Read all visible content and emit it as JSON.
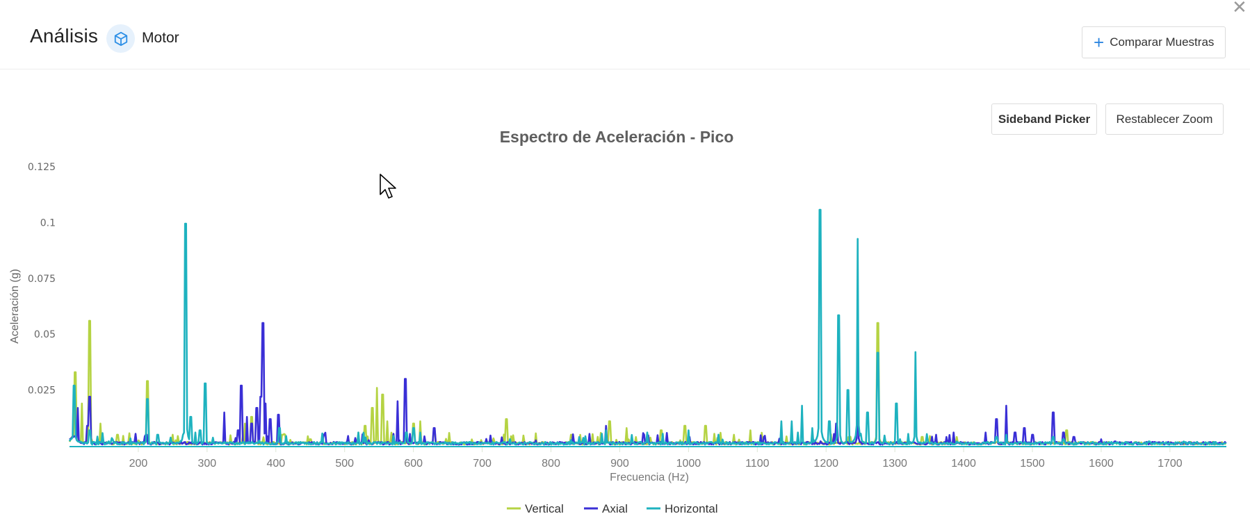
{
  "header": {
    "title": "Análisis",
    "asset_icon": "cube-icon",
    "asset_name": "Motor",
    "close_icon": "close-icon",
    "compare_button": {
      "icon": "plus-icon",
      "label": "Comparar Muestras"
    }
  },
  "toolbar": {
    "sideband_picker_label": "Sideband Picker",
    "reset_zoom_label": "Restablecer Zoom"
  },
  "colors": {
    "vertical": "#b5d343",
    "axial": "#3a2fd6",
    "horizontal": "#1eb2bf",
    "accent": "#2d86e0"
  },
  "chart_data": {
    "type": "line",
    "title": "Espectro de Aceleración - Pico",
    "xlabel": "Frecuencia (Hz)",
    "ylabel": "Aceleración (g)",
    "xlim": [
      100,
      1782
    ],
    "ylim": [
      0,
      0.125
    ],
    "x_ticks": [
      200,
      300,
      400,
      500,
      600,
      700,
      800,
      900,
      1000,
      1100,
      1200,
      1300,
      1400,
      1500,
      1600,
      1700
    ],
    "y_ticks": [
      0.025,
      0.05,
      0.075,
      0.1,
      0.125
    ],
    "y_tick_labels": [
      "0.025",
      "0.05",
      "0.075",
      "0.1",
      "0.125"
    ],
    "grid": false,
    "legend_position": "bottom",
    "series": [
      {
        "name": "Vertical",
        "color": "#b5d343",
        "peaks": [
          [
            108,
            0.033
          ],
          [
            118,
            0.019
          ],
          [
            129,
            0.056
          ],
          [
            145,
            0.01
          ],
          [
            170,
            0.005
          ],
          [
            213,
            0.029
          ],
          [
            250,
            0.005
          ],
          [
            355,
            0.01
          ],
          [
            365,
            0.013
          ],
          [
            410,
            0.005
          ],
          [
            450,
            0.003
          ],
          [
            505,
            0.004
          ],
          [
            520,
            0.006
          ],
          [
            530,
            0.009
          ],
          [
            540,
            0.017
          ],
          [
            547,
            0.026
          ],
          [
            555,
            0.023
          ],
          [
            562,
            0.011
          ],
          [
            600,
            0.01
          ],
          [
            610,
            0.011
          ],
          [
            630,
            0.007
          ],
          [
            735,
            0.012
          ],
          [
            830,
            0.005
          ],
          [
            885,
            0.011
          ],
          [
            910,
            0.008
          ],
          [
            960,
            0.007
          ],
          [
            995,
            0.009
          ],
          [
            1025,
            0.009
          ],
          [
            1090,
            0.007
          ],
          [
            1275,
            0.055
          ],
          [
            1340,
            0.004
          ],
          [
            1390,
            0.004
          ],
          [
            1550,
            0.007
          ]
        ]
      },
      {
        "name": "Axial",
        "color": "#3a2fd6",
        "peaks": [
          [
            112,
            0.017
          ],
          [
            126,
            0.009
          ],
          [
            129,
            0.022
          ],
          [
            212,
            0.005
          ],
          [
            325,
            0.015
          ],
          [
            345,
            0.007
          ],
          [
            350,
            0.027
          ],
          [
            358,
            0.013
          ],
          [
            365,
            0.01
          ],
          [
            372,
            0.017
          ],
          [
            378,
            0.022
          ],
          [
            381,
            0.055
          ],
          [
            385,
            0.019
          ],
          [
            392,
            0.012
          ],
          [
            404,
            0.014
          ],
          [
            470,
            0.004
          ],
          [
            577,
            0.02
          ],
          [
            588,
            0.03
          ],
          [
            630,
            0.008
          ],
          [
            880,
            0.009
          ],
          [
            935,
            0.005
          ],
          [
            1110,
            0.004
          ],
          [
            1215,
            0.01
          ],
          [
            1246,
            0.034
          ],
          [
            1360,
            0.005
          ],
          [
            1375,
            0.004
          ],
          [
            1432,
            0.006
          ],
          [
            1448,
            0.012
          ],
          [
            1462,
            0.018
          ],
          [
            1475,
            0.006
          ],
          [
            1488,
            0.008
          ],
          [
            1500,
            0.005
          ],
          [
            1530,
            0.015
          ],
          [
            1545,
            0.006
          ],
          [
            1560,
            0.004
          ],
          [
            1600,
            0.003
          ],
          [
            1620,
            0.002
          ]
        ]
      },
      {
        "name": "Horizontal",
        "color": "#1eb2bf",
        "peaks": [
          [
            107,
            0.027
          ],
          [
            129,
            0.007
          ],
          [
            213,
            0.021
          ],
          [
            228,
            0.005
          ],
          [
            269,
            0.0995
          ],
          [
            276,
            0.013
          ],
          [
            283,
            0.006
          ],
          [
            290,
            0.007
          ],
          [
            297,
            0.028
          ],
          [
            405,
            0.008
          ],
          [
            520,
            0.006
          ],
          [
            590,
            0.006
          ],
          [
            600,
            0.008
          ],
          [
            610,
            0.006
          ],
          [
            880,
            0.007
          ],
          [
            940,
            0.006
          ],
          [
            1000,
            0.007
          ],
          [
            1135,
            0.011
          ],
          [
            1150,
            0.011
          ],
          [
            1165,
            0.018
          ],
          [
            1180,
            0.008
          ],
          [
            1191,
            0.1057
          ],
          [
            1205,
            0.011
          ],
          [
            1218,
            0.0585
          ],
          [
            1232,
            0.025
          ],
          [
            1246,
            0.0927
          ],
          [
            1260,
            0.015
          ],
          [
            1275,
            0.0417
          ],
          [
            1302,
            0.019
          ],
          [
            1330,
            0.042
          ],
          [
            1390,
            0.002
          ],
          [
            1448,
            0.004
          ],
          [
            1462,
            0.005
          ],
          [
            1530,
            0.004
          ],
          [
            1545,
            0.003
          ],
          [
            1670,
            0.002
          ],
          [
            1720,
            0.002
          ]
        ]
      }
    ]
  }
}
